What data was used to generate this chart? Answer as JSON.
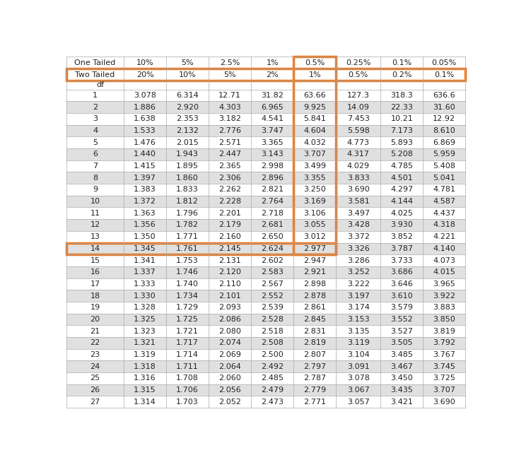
{
  "col_headers_row1": [
    "One Tailed",
    "10%",
    "5%",
    "2.5%",
    "1%",
    "0.5%",
    "0.25%",
    "0.1%",
    "0.05%"
  ],
  "col_headers_row2": [
    "Two Tailed",
    "20%",
    "10%",
    "5%",
    "2%",
    "1%",
    "0.5%",
    "0.2%",
    "0.1%"
  ],
  "df_label": "df",
  "rows": [
    [
      "1",
      "3.078",
      "6.314",
      "12.71",
      "31.82",
      "63.66",
      "127.3",
      "318.3",
      "636.6"
    ],
    [
      "2",
      "1.886",
      "2.920",
      "4.303",
      "6.965",
      "9.925",
      "14.09",
      "22.33",
      "31.60"
    ],
    [
      "3",
      "1.638",
      "2.353",
      "3.182",
      "4.541",
      "5.841",
      "7.453",
      "10.21",
      "12.92"
    ],
    [
      "4",
      "1.533",
      "2.132",
      "2.776",
      "3.747",
      "4.604",
      "5.598",
      "7.173",
      "8.610"
    ],
    [
      "5",
      "1.476",
      "2.015",
      "2.571",
      "3.365",
      "4.032",
      "4.773",
      "5.893",
      "6.869"
    ],
    [
      "6",
      "1.440",
      "1.943",
      "2.447",
      "3.143",
      "3.707",
      "4.317",
      "5.208",
      "5.959"
    ],
    [
      "7",
      "1.415",
      "1.895",
      "2.365",
      "2.998",
      "3.499",
      "4.029",
      "4.785",
      "5.408"
    ],
    [
      "8",
      "1.397",
      "1.860",
      "2.306",
      "2.896",
      "3.355",
      "3.833",
      "4.501",
      "5.041"
    ],
    [
      "9",
      "1.383",
      "1.833",
      "2.262",
      "2.821",
      "3.250",
      "3.690",
      "4.297",
      "4.781"
    ],
    [
      "10",
      "1.372",
      "1.812",
      "2.228",
      "2.764",
      "3.169",
      "3.581",
      "4.144",
      "4.587"
    ],
    [
      "11",
      "1.363",
      "1.796",
      "2.201",
      "2.718",
      "3.106",
      "3.497",
      "4.025",
      "4.437"
    ],
    [
      "12",
      "1.356",
      "1.782",
      "2.179",
      "2.681",
      "3.055",
      "3.428",
      "3.930",
      "4.318"
    ],
    [
      "13",
      "1.350",
      "1.771",
      "2.160",
      "2.650",
      "3.012",
      "3.372",
      "3.852",
      "4.221"
    ],
    [
      "14",
      "1.345",
      "1.761",
      "2.145",
      "2.624",
      "2.977",
      "3.326",
      "3.787",
      "4.140"
    ],
    [
      "15",
      "1.341",
      "1.753",
      "2.131",
      "2.602",
      "2.947",
      "3.286",
      "3.733",
      "4.073"
    ],
    [
      "16",
      "1.337",
      "1.746",
      "2.120",
      "2.583",
      "2.921",
      "3.252",
      "3.686",
      "4.015"
    ],
    [
      "17",
      "1.333",
      "1.740",
      "2.110",
      "2.567",
      "2.898",
      "3.222",
      "3.646",
      "3.965"
    ],
    [
      "18",
      "1.330",
      "1.734",
      "2.101",
      "2.552",
      "2.878",
      "3.197",
      "3.610",
      "3.922"
    ],
    [
      "19",
      "1.328",
      "1.729",
      "2.093",
      "2.539",
      "2.861",
      "3.174",
      "3.579",
      "3.883"
    ],
    [
      "20",
      "1.325",
      "1.725",
      "2.086",
      "2.528",
      "2.845",
      "3.153",
      "3.552",
      "3.850"
    ],
    [
      "21",
      "1.323",
      "1.721",
      "2.080",
      "2.518",
      "2.831",
      "3.135",
      "3.527",
      "3.819"
    ],
    [
      "22",
      "1.321",
      "1.717",
      "2.074",
      "2.508",
      "2.819",
      "3.119",
      "3.505",
      "3.792"
    ],
    [
      "23",
      "1.319",
      "1.714",
      "2.069",
      "2.500",
      "2.807",
      "3.104",
      "3.485",
      "3.767"
    ],
    [
      "24",
      "1.318",
      "1.711",
      "2.064",
      "2.492",
      "2.797",
      "3.091",
      "3.467",
      "3.745"
    ],
    [
      "25",
      "1.316",
      "1.708",
      "2.060",
      "2.485",
      "2.787",
      "3.078",
      "3.450",
      "3.725"
    ],
    [
      "26",
      "1.315",
      "1.706",
      "2.056",
      "2.479",
      "2.779",
      "3.067",
      "3.435",
      "3.707"
    ],
    [
      "27",
      "1.314",
      "1.703",
      "2.052",
      "2.473",
      "2.771",
      "3.057",
      "3.421",
      "3.690"
    ]
  ],
  "orange_color": "#E87722",
  "grid_color": "#AAAAAA",
  "white_row_bg": "#FFFFFF",
  "gray_row_bg": "#E0E0E0",
  "header_bg": "#FFFFFF",
  "font_size": 8.0,
  "col_widths_rel": [
    1.35,
    1.0,
    1.0,
    1.0,
    1.0,
    1.0,
    1.05,
    1.0,
    1.0
  ],
  "orange_col_idx": 5,
  "orange_row_df": 14
}
